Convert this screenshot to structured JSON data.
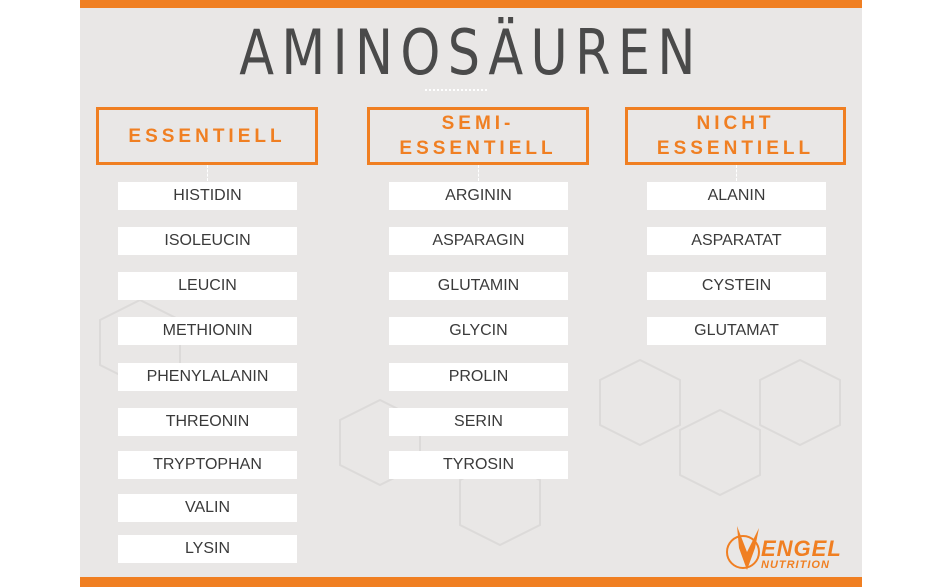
{
  "title": "AMINOSÄUREN",
  "colors": {
    "accent": "#f07f22",
    "background": "#e9e7e6",
    "text": "#3a3a3a"
  },
  "columns": [
    {
      "header": "ESSENTIELL",
      "items": [
        "HISTIDIN",
        "ISOLEUCIN",
        "LEUCIN",
        "METHIONIN",
        "PHENYLALANIN",
        "THREONIN",
        "TRYPTOPHAN",
        "VALIN",
        "LYSIN"
      ]
    },
    {
      "header": "SEMI-\nESSENTIELL",
      "items": [
        "ARGININ",
        "ASPARAGIN",
        "GLUTAMIN",
        "GLYCIN",
        "PROLIN",
        "SERIN",
        "TYROSIN"
      ]
    },
    {
      "header": "NICHT\nESSENTIELL",
      "items": [
        "ALANIN",
        "ASPARATAT",
        "CYSTEIN",
        "GLUTAMAT"
      ]
    }
  ],
  "logo": {
    "line1": "ENGEL",
    "line2": "NUTRITION",
    "icon": "winged-angel-icon"
  }
}
